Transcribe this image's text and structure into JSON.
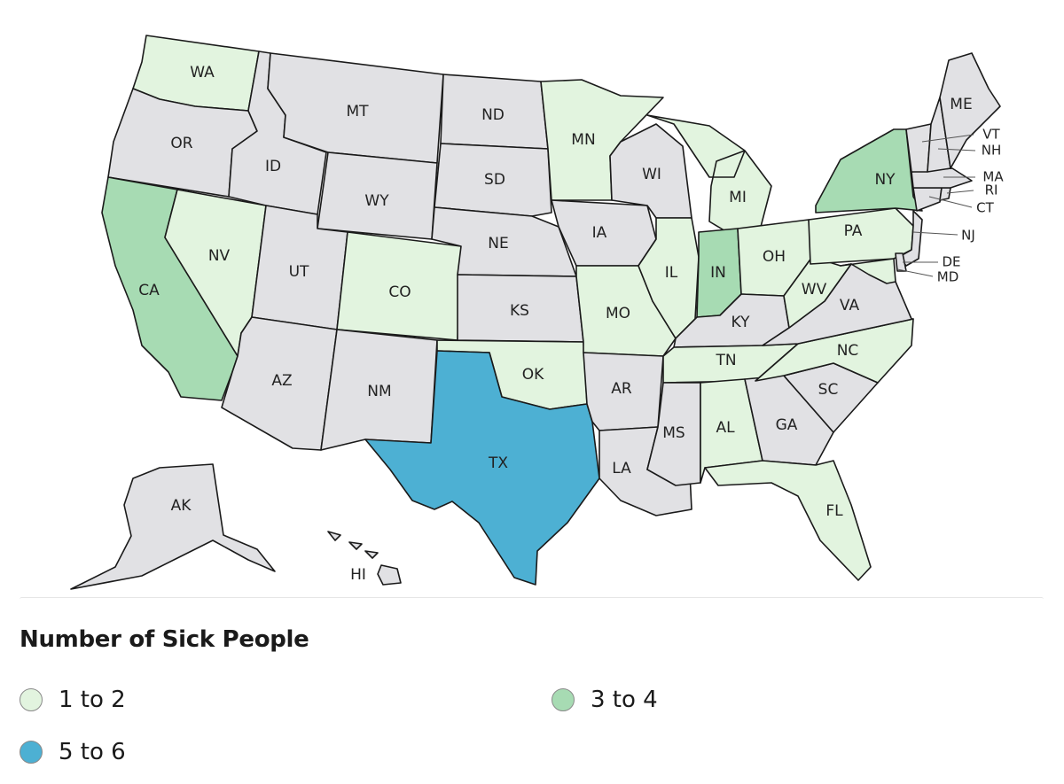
{
  "colors": {
    "none": "#e1e1e4",
    "low": "#e2f4df",
    "mid": "#a7dbb3",
    "high": "#4db0d3"
  },
  "legend": {
    "title": "Number of Sick People",
    "items": [
      {
        "label": "1 to 2",
        "class": "low",
        "color": "#e2f4df"
      },
      {
        "label": "3 to 4",
        "class": "mid",
        "color": "#a7dbb3"
      },
      {
        "label": "5 to 6",
        "class": "high",
        "color": "#4db0d3"
      }
    ]
  },
  "states": {
    "WA": {
      "label": "WA",
      "class": "low"
    },
    "OR": {
      "label": "OR",
      "class": "none"
    },
    "CA": {
      "label": "CA",
      "class": "mid"
    },
    "NV": {
      "label": "NV",
      "class": "low"
    },
    "ID": {
      "label": "ID",
      "class": "none"
    },
    "MT": {
      "label": "MT",
      "class": "none"
    },
    "WY": {
      "label": "WY",
      "class": "none"
    },
    "UT": {
      "label": "UT",
      "class": "none"
    },
    "AZ": {
      "label": "AZ",
      "class": "none"
    },
    "CO": {
      "label": "CO",
      "class": "low"
    },
    "NM": {
      "label": "NM",
      "class": "none"
    },
    "ND": {
      "label": "ND",
      "class": "none"
    },
    "SD": {
      "label": "SD",
      "class": "none"
    },
    "NE": {
      "label": "NE",
      "class": "none"
    },
    "KS": {
      "label": "KS",
      "class": "none"
    },
    "OK": {
      "label": "OK",
      "class": "low"
    },
    "TX": {
      "label": "TX",
      "class": "high"
    },
    "MN": {
      "label": "MN",
      "class": "low"
    },
    "IA": {
      "label": "IA",
      "class": "none"
    },
    "MO": {
      "label": "MO",
      "class": "low"
    },
    "AR": {
      "label": "AR",
      "class": "none"
    },
    "LA": {
      "label": "LA",
      "class": "none"
    },
    "WI": {
      "label": "WI",
      "class": "none"
    },
    "IL": {
      "label": "IL",
      "class": "low"
    },
    "MI": {
      "label": "MI",
      "class": "low"
    },
    "IN": {
      "label": "IN",
      "class": "mid"
    },
    "OH": {
      "label": "OH",
      "class": "low"
    },
    "KY": {
      "label": "KY",
      "class": "none"
    },
    "TN": {
      "label": "TN",
      "class": "low"
    },
    "MS": {
      "label": "MS",
      "class": "none"
    },
    "AL": {
      "label": "AL",
      "class": "low"
    },
    "GA": {
      "label": "GA",
      "class": "none"
    },
    "FL": {
      "label": "FL",
      "class": "low"
    },
    "SC": {
      "label": "SC",
      "class": "none"
    },
    "NC": {
      "label": "NC",
      "class": "low"
    },
    "VA": {
      "label": "VA",
      "class": "none"
    },
    "WV": {
      "label": "WV",
      "class": "low"
    },
    "PA": {
      "label": "PA",
      "class": "low"
    },
    "NY": {
      "label": "NY",
      "class": "mid"
    },
    "NJ": {
      "label": "NJ",
      "class": "none"
    },
    "DE": {
      "label": "DE",
      "class": "none"
    },
    "MD": {
      "label": "MD",
      "class": "low"
    },
    "CT": {
      "label": "CT",
      "class": "none"
    },
    "RI": {
      "label": "RI",
      "class": "none"
    },
    "MA": {
      "label": "MA",
      "class": "none"
    },
    "VT": {
      "label": "VT",
      "class": "none"
    },
    "NH": {
      "label": "NH",
      "class": "none"
    },
    "ME": {
      "label": "ME",
      "class": "none"
    },
    "AK": {
      "label": "AK",
      "class": "none"
    },
    "HI": {
      "label": "HI",
      "class": "none"
    }
  }
}
